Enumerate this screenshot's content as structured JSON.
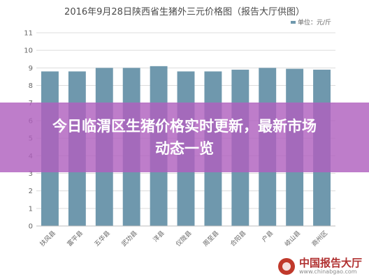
{
  "chart_data": {
    "type": "bar",
    "title": "2016年9月28日陕西省生猪外三元价格图（报告大厅供图）",
    "legend": {
      "label": "单位：元/斤",
      "position": "top-right"
    },
    "categories": [
      "扶风县",
      "富平县",
      "五华县",
      "武功县",
      "洋县",
      "仪陇县",
      "周至县",
      "合阳县",
      "户县",
      "岐山县",
      "商州区"
    ],
    "values": [
      8.8,
      8.8,
      9.0,
      9.0,
      9.1,
      8.8,
      8.8,
      8.9,
      9.0,
      8.95,
      8.9
    ],
    "ylim": [
      0,
      11
    ],
    "yticks": [
      0,
      1,
      2,
      3,
      4,
      5,
      6,
      7,
      8,
      9,
      10,
      11
    ],
    "grid": true,
    "bar_color": "#6f98ad"
  },
  "banner": {
    "text": "今日临渭区生猪价格实时更新，最新市场动态一览"
  },
  "watermark": {
    "name": "中国报告大厅",
    "url": "www.chinabgao.com"
  }
}
